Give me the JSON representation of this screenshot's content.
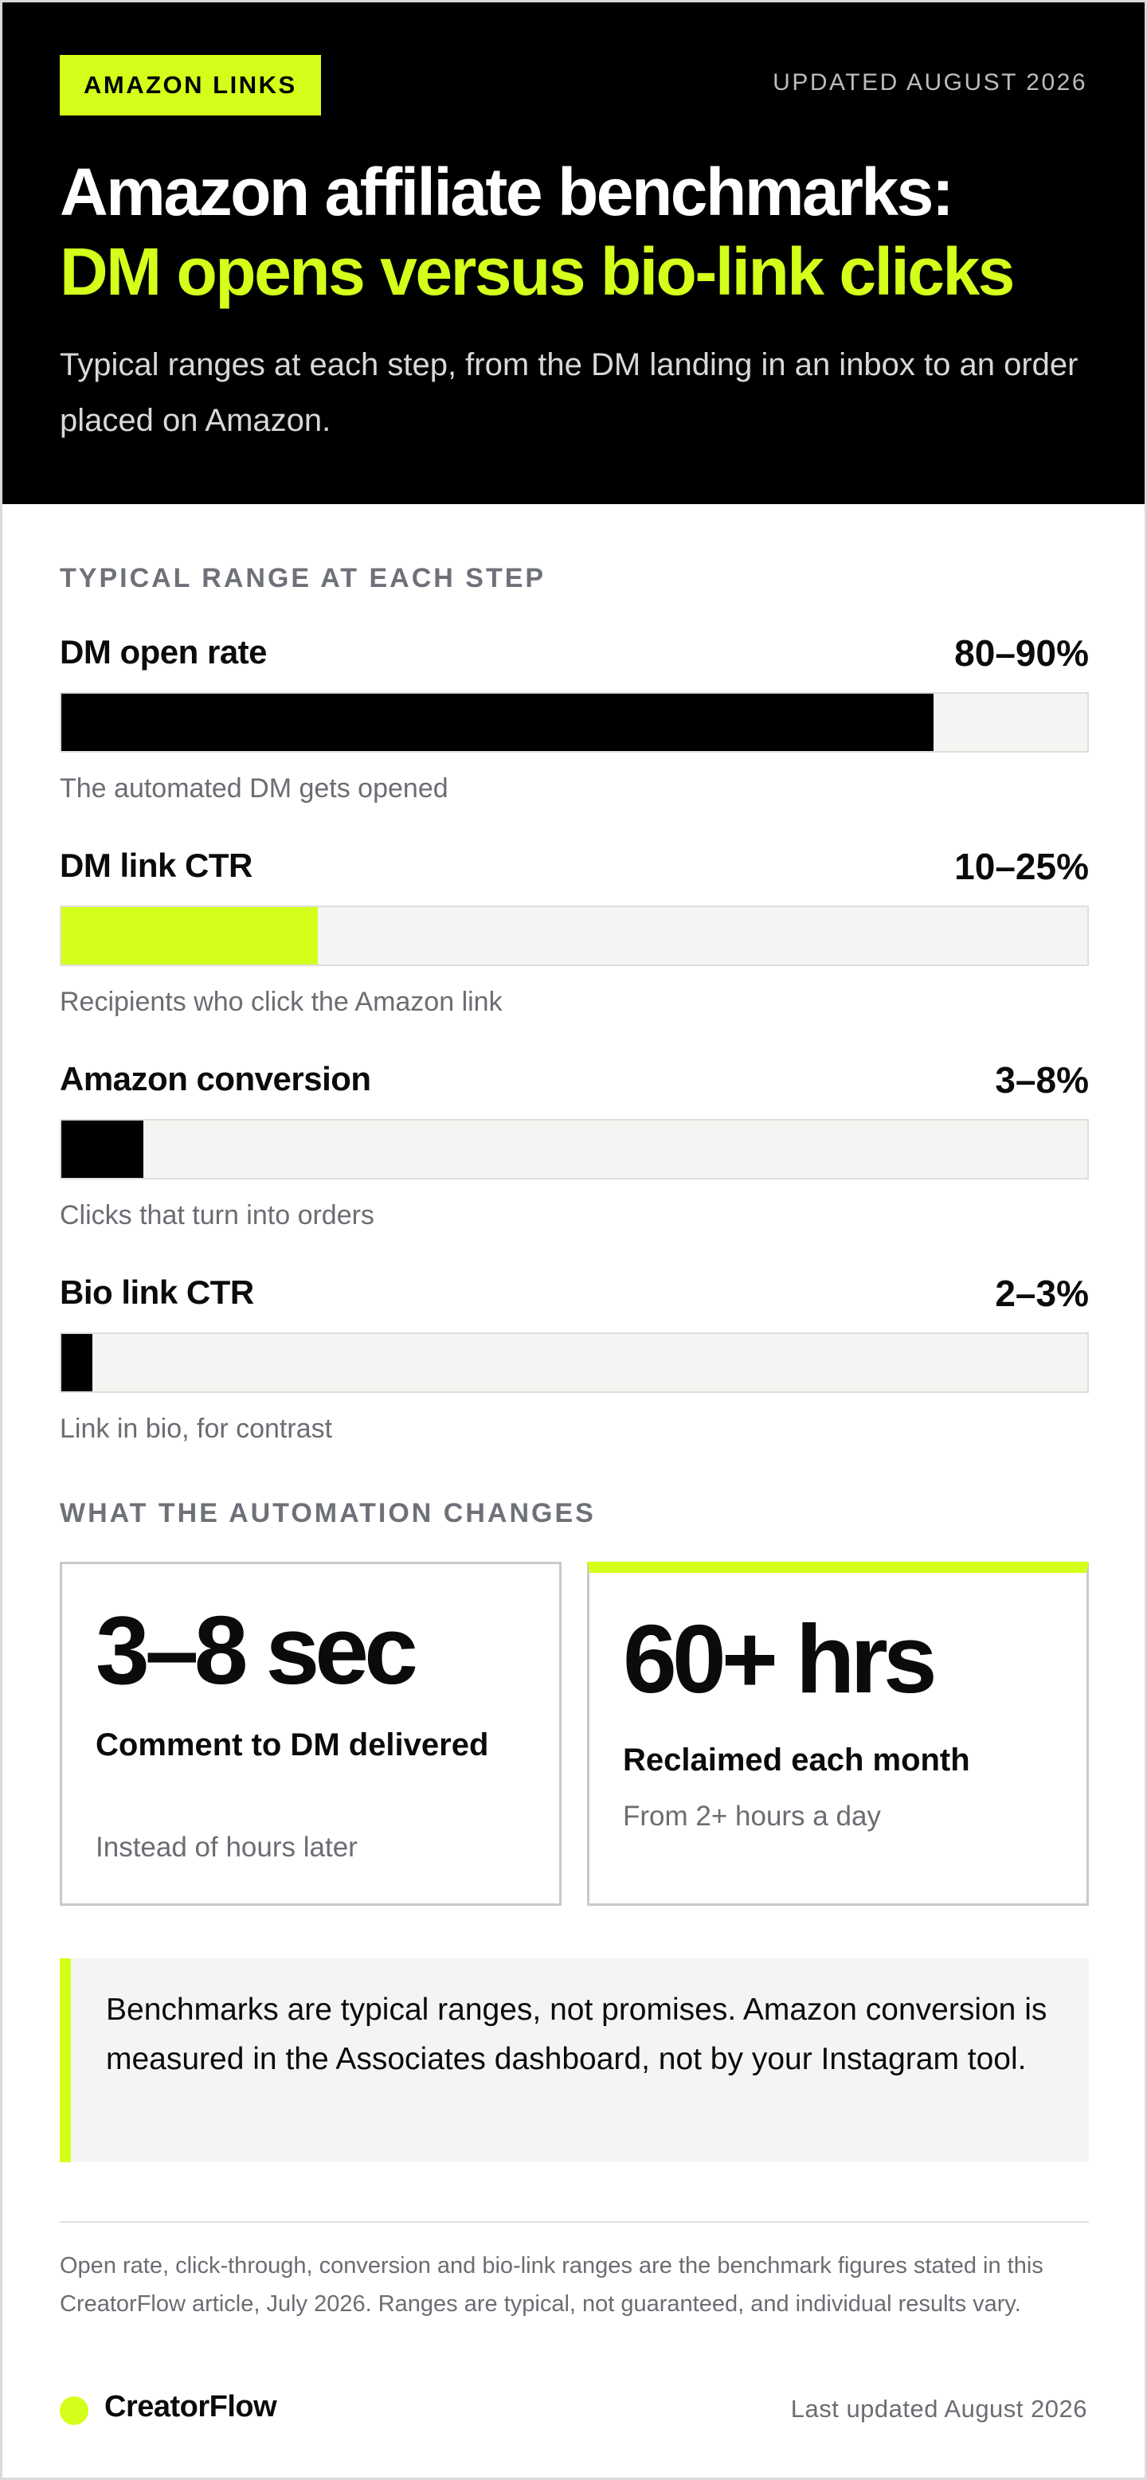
{
  "header": {
    "badge": "AMAZON LINKS",
    "updated": "UPDATED AUGUST 2026",
    "title_line1": "Amazon affiliate benchmarks:",
    "title_line2": "DM opens versus bio-link clicks",
    "subtitle": "Typical ranges at each step, from the DM landing in an inbox to an order placed on Amazon."
  },
  "section1_label": "TYPICAL RANGE AT EACH STEP",
  "chart_data": {
    "type": "bar",
    "title": "TYPICAL RANGE AT EACH STEP",
    "xlim": [
      0,
      100
    ],
    "unit": "%",
    "bars": [
      {
        "label": "DM open rate",
        "value_text": "80–90%",
        "range": [
          80,
          90
        ],
        "fill_value": 85,
        "color": "#000000",
        "description": "The automated DM gets opened"
      },
      {
        "label": "DM link CTR",
        "value_text": "10–25%",
        "range": [
          10,
          25
        ],
        "fill_value": 25,
        "color": "#d4ff1a",
        "description": "Recipients who click the Amazon link"
      },
      {
        "label": "Amazon conversion",
        "value_text": "3–8%",
        "range": [
          3,
          8
        ],
        "fill_value": 8,
        "color": "#000000",
        "description": "Clicks that turn into orders"
      },
      {
        "label": "Bio link CTR",
        "value_text": "2–3%",
        "range": [
          2,
          3
        ],
        "fill_value": 3,
        "color": "#000000",
        "description": "Link in bio, for contrast"
      }
    ]
  },
  "section2_label": "WHAT THE AUTOMATION CHANGES",
  "cards": [
    {
      "big": "3–8 sec",
      "title": "Comment to DM delivered",
      "desc": "Instead of hours later"
    },
    {
      "big": "60+ hrs",
      "title": "Reclaimed each month",
      "desc": "From 2+ hours a day"
    }
  ],
  "note": "Benchmarks are typical ranges, not promises. Amazon conversion is measured in the Associates dashboard, not by your Instagram tool.",
  "footnote": "Open rate, click-through, conversion and bio-link ranges are the benchmark figures stated in this CreatorFlow article, July 2026. Ranges are typical, not guaranteed, and individual results vary.",
  "footer": {
    "brand": "CreatorFlow",
    "last_updated": "Last updated August 2026"
  },
  "colors": {
    "accent": "#d4ff1a",
    "ink": "#000000",
    "track": "#f4f5f2"
  }
}
